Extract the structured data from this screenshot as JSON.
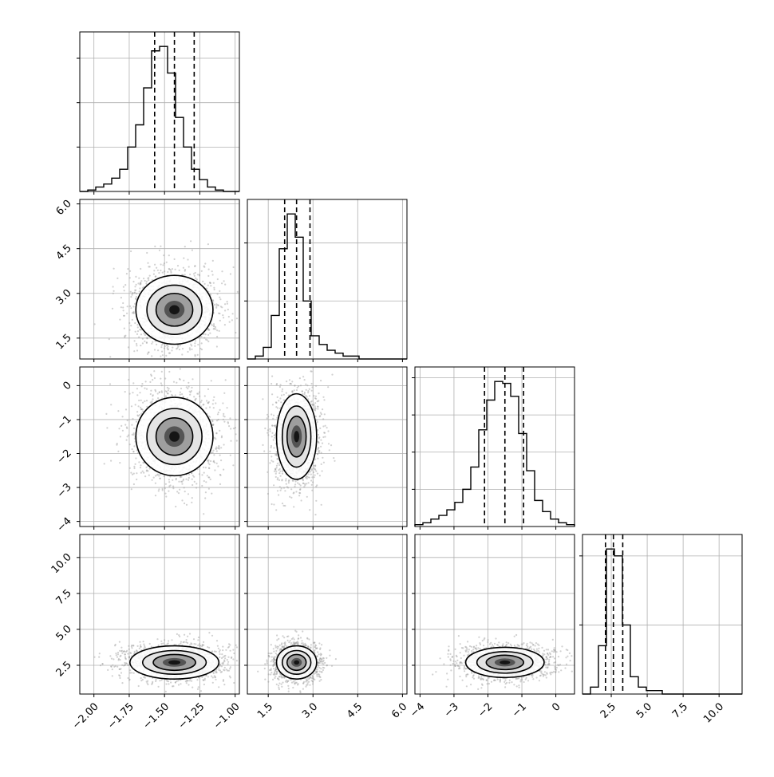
{
  "chart_data": {
    "type": "corner",
    "grid": true,
    "parameters": [
      {
        "range": [
          -2.1,
          -0.97
        ],
        "ticks": [
          -2.0,
          -1.75,
          -1.5,
          -1.25,
          -1.0
        ],
        "tick_labels": [
          "−2.00",
          "−1.75",
          "−1.50",
          "−1.25",
          "−1.00"
        ],
        "quantiles": [
          -1.57,
          -1.43,
          -1.29
        ]
      },
      {
        "range": [
          0.8,
          6.15
        ],
        "ticks": [
          1.5,
          3.0,
          4.5,
          6.0
        ],
        "tick_labels": [
          "1.5",
          "3.0",
          "4.5",
          "6.0"
        ],
        "quantiles": [
          2.05,
          2.45,
          2.9
        ]
      },
      {
        "range": [
          -4.15,
          0.55
        ],
        "ticks": [
          -4,
          -3,
          -2,
          -1,
          0
        ],
        "tick_labels": [
          "−4",
          "−3",
          "−2",
          "−1",
          "0"
        ],
        "quantiles": [
          -2.1,
          -1.5,
          -0.95
        ]
      },
      {
        "range": [
          0.5,
          11.6
        ],
        "ticks": [
          2.5,
          5.0,
          7.5,
          10.0
        ],
        "tick_labels": [
          "2.5",
          "5.0",
          "7.5",
          "10.0"
        ],
        "quantiles": [
          2.1,
          2.65,
          3.3
        ]
      }
    ],
    "histograms": [
      {
        "edges_start": -2.1,
        "bin_width": 0.0565,
        "counts": [
          0,
          1,
          3,
          5,
          9,
          15,
          30,
          45,
          70,
          95,
          98,
          80,
          50,
          30,
          15,
          8,
          3,
          1,
          0,
          0
        ]
      },
      {
        "edges_start": 0.8,
        "bin_width": 0.2675,
        "counts": [
          0,
          1,
          4,
          15,
          38,
          50,
          42,
          20,
          8,
          5,
          3,
          2,
          1,
          1,
          0,
          0,
          0,
          0,
          0,
          0
        ]
      },
      {
        "edges_start": -4.15,
        "bin_width": 0.235,
        "counts": [
          1,
          2,
          4,
          6,
          9,
          13,
          20,
          32,
          52,
          68,
          78,
          77,
          70,
          50,
          30,
          14,
          8,
          4,
          2,
          1
        ]
      },
      {
        "edges_start": 0.5,
        "bin_width": 0.555,
        "counts": [
          0,
          2,
          14,
          42,
          40,
          20,
          5,
          2,
          1,
          1,
          0,
          0,
          0,
          0,
          0,
          0,
          0,
          0,
          0,
          0
        ]
      }
    ],
    "pairs": [
      {
        "row": 1,
        "col": 0,
        "center": [
          -1.43,
          2.45
        ],
        "sd": [
          0.13,
          0.55
        ]
      },
      {
        "row": 2,
        "col": 0,
        "center": [
          -1.43,
          -1.5
        ],
        "sd": [
          0.13,
          0.55
        ]
      },
      {
        "row": 2,
        "col": 1,
        "center": [
          2.45,
          -1.5
        ],
        "sd": [
          0.32,
          0.6
        ]
      },
      {
        "row": 3,
        "col": 0,
        "center": [
          -1.43,
          2.7
        ],
        "sd": [
          0.15,
          0.55
        ]
      },
      {
        "row": 3,
        "col": 1,
        "center": [
          2.45,
          2.7
        ],
        "sd": [
          0.32,
          0.55
        ]
      },
      {
        "row": 3,
        "col": 2,
        "center": [
          -1.5,
          2.7
        ],
        "sd": [
          0.55,
          0.5
        ]
      }
    ]
  }
}
